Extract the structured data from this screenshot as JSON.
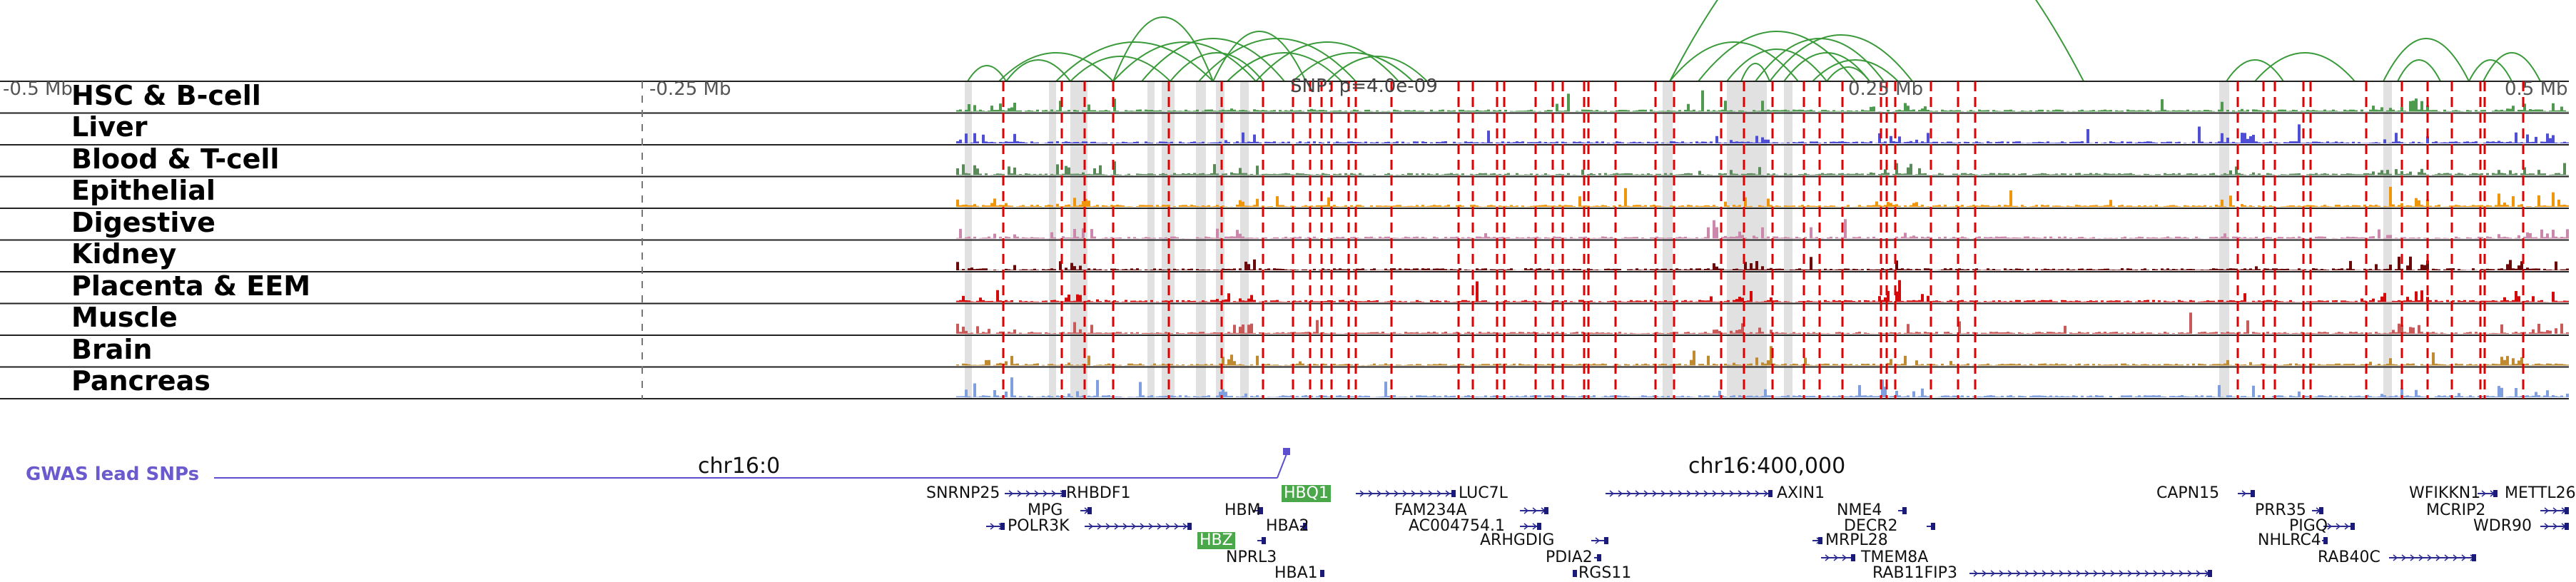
{
  "tracks": [
    {
      "name": "HSC & B-cell",
      "color": "#4e9a4e"
    },
    {
      "name": "Liver",
      "color": "#4f4fd6"
    },
    {
      "name": "Blood & T-cell",
      "color": "#5b8a5b"
    },
    {
      "name": "Epithelial",
      "color": "#f0960a"
    },
    {
      "name": "Digestive",
      "color": "#cc88aa"
    },
    {
      "name": "Kidney",
      "color": "#6b0a0a"
    },
    {
      "name": "Placenta & EEM",
      "color": "#d40a0a"
    },
    {
      "name": "Muscle",
      "color": "#c85a5a"
    },
    {
      "name": "Brain",
      "color": "#c08a30"
    },
    {
      "name": "Pancreas",
      "color": "#7f9fdf"
    }
  ],
  "positions": {
    "left": "-0.5 Mb",
    "mid_left": "-0.25 Mb",
    "mid_right": "0.25 Mb",
    "right": "0.5 Mb"
  },
  "chromosome": {
    "left": "chr16:0",
    "right": "chr16:400,000"
  },
  "gwas_title": "GWAS lead SNPs",
  "snp_label": "SNP: p=4.0e-09",
  "genes": [
    "SNRNP25",
    "RHBDF1",
    "MPG",
    "POLR3K",
    "HBM",
    "HBQ1",
    "HBA2",
    "HBZ",
    "NPRL3",
    "HBA1",
    "LUC7L",
    "FAM234A",
    "AC004754.1",
    "ARHGDIG",
    "PDIA2",
    "RGS11",
    "AXIN1",
    "NME4",
    "DECR2",
    "MRPL28",
    "TMEM8A",
    "RAB11FIP3",
    "CAPN15",
    "PRR35",
    "PIGQ",
    "NHLRC4",
    "RAB40C",
    "WFIKKN1",
    "METTL26",
    "MCRIP2",
    "WDR90"
  ]
}
